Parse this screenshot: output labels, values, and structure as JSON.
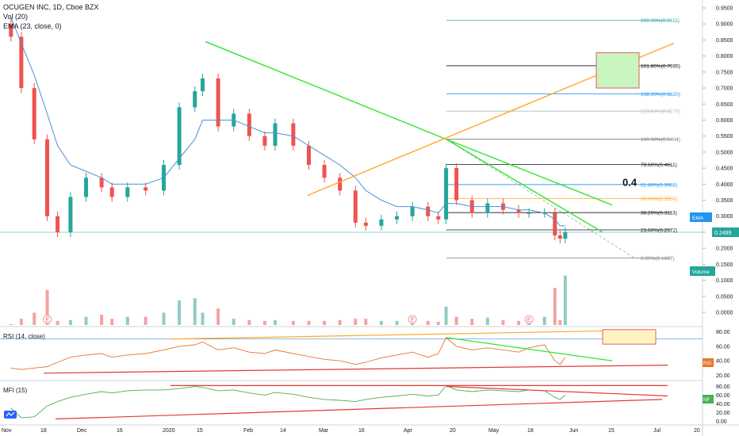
{
  "header": {
    "symbol_line": "OCUGEN INC, 1D, Cboe BZX",
    "vol_line": "Vol (20)",
    "ema_line": "EMA (23, close, 0)"
  },
  "panels": {
    "rsi_label": "RSI (14, close)",
    "mfi_label": "MFI (15)"
  },
  "axis": {
    "price_ticks": [
      "0.9500",
      "0.9000",
      "0.8500",
      "0.8000",
      "0.7500",
      "0.7000",
      "0.6500",
      "0.6000",
      "0.5500",
      "0.5000",
      "0.4500",
      "0.4000",
      "0.3500",
      "0.3000",
      "0.2500",
      "0.2000",
      "0.1500",
      "0.1000",
      "0.0500",
      "0.0000"
    ],
    "rsi_ticks": [
      "80.00",
      "60.00",
      "40.00",
      "20.00"
    ],
    "mfi_ticks": [
      "80.00",
      "60.00",
      "40.00",
      "20.00",
      "0.00"
    ],
    "date_labels": [
      "Nov",
      "18",
      "Dec",
      "16",
      "2020",
      "15",
      "Feb",
      "14",
      "Mar",
      "16",
      "Apr",
      "20",
      "May",
      "18",
      "Jun",
      "15",
      "Jul",
      "20"
    ]
  },
  "badges": {
    "ema": "EMA",
    "last_price": "0.2499",
    "volume": "Volume",
    "rsi": "RSI",
    "mfi": "MF"
  },
  "annotation_text": "0.4",
  "earnings_marker": "E",
  "colors": {
    "up": "#26a69a",
    "down": "#ef5350",
    "ema": "#4a90d9",
    "trend_green": "#2ee52e",
    "trend_orange": "#ffa726",
    "rsi_line": "#e6772e",
    "mfi_line": "#4caf50",
    "support_red": "#e53935"
  },
  "chart_data": {
    "type": "candlestick",
    "x": [
      "2019-11-04",
      "2019-11-08",
      "2019-11-13",
      "2019-11-18",
      "2019-11-22",
      "2019-11-27",
      "2019-12-03",
      "2019-12-09",
      "2019-12-13",
      "2019-12-19",
      "2019-12-26",
      "2020-01-02",
      "2020-01-08",
      "2020-01-14",
      "2020-01-17",
      "2020-01-23",
      "2020-01-29",
      "2020-02-04",
      "2020-02-10",
      "2020-02-14",
      "2020-02-21",
      "2020-02-27",
      "2020-03-04",
      "2020-03-10",
      "2020-03-16",
      "2020-03-20",
      "2020-03-26",
      "2020-04-01",
      "2020-04-07",
      "2020-04-13",
      "2020-04-17",
      "2020-04-20",
      "2020-04-24",
      "2020-04-30",
      "2020-05-06",
      "2020-05-12",
      "2020-05-18",
      "2020-05-22",
      "2020-05-28",
      "2020-06-01",
      "2020-06-03",
      "2020-06-05"
    ],
    "close": [
      0.86,
      0.7,
      0.54,
      0.3,
      0.25,
      0.36,
      0.42,
      0.39,
      0.36,
      0.39,
      0.38,
      0.46,
      0.64,
      0.69,
      0.73,
      0.58,
      0.62,
      0.55,
      0.52,
      0.59,
      0.52,
      0.46,
      0.42,
      0.38,
      0.28,
      0.27,
      0.29,
      0.3,
      0.33,
      0.3,
      0.29,
      0.45,
      0.35,
      0.31,
      0.34,
      0.32,
      0.31,
      0.31,
      0.31,
      0.24,
      0.23,
      0.25
    ],
    "ema_values": [
      0.92,
      0.84,
      0.74,
      0.62,
      0.52,
      0.46,
      0.44,
      0.42,
      0.4,
      0.4,
      0.4,
      0.42,
      0.48,
      0.54,
      0.6,
      0.6,
      0.6,
      0.58,
      0.56,
      0.56,
      0.55,
      0.52,
      0.49,
      0.46,
      0.42,
      0.38,
      0.35,
      0.33,
      0.33,
      0.32,
      0.31,
      0.34,
      0.34,
      0.33,
      0.33,
      0.33,
      0.32,
      0.32,
      0.31,
      0.29,
      0.27,
      0.27
    ],
    "volume_values": [
      0.002,
      0.015,
      0.03,
      0.085,
      0.01,
      0.012,
      0.02,
      0.025,
      0.015,
      0.02,
      0.02,
      0.03,
      0.06,
      0.065,
      0.03,
      0.04,
      0.015,
      0.012,
      0.01,
      0.012,
      0.01,
      0.01,
      0.01,
      0.012,
      0.015,
      0.015,
      0.01,
      0.01,
      0.015,
      0.01,
      0.008,
      0.045,
      0.02,
      0.015,
      0.018,
      0.012,
      0.01,
      0.015,
      0.02,
      0.09,
      0.012,
      0.12
    ],
    "fibonacci": [
      {
        "label": "200.00%(0.9111)",
        "value": 0.9111
      },
      {
        "label": "161.80%(0.7695)",
        "value": 0.7695
      },
      {
        "label": "138.20%(0.6820)",
        "value": 0.682
      },
      {
        "label": "123.60%(0.6279)",
        "value": 0.6279
      },
      {
        "label": "100.00%(0.5404)",
        "value": 0.5404
      },
      {
        "label": "78.60%(0.4611)",
        "value": 0.4611
      },
      {
        "label": "61.80%(0.3988)",
        "value": 0.3988
      },
      {
        "label": "50.00%(0.3550)",
        "value": 0.355
      },
      {
        "label": "38.20%(0.3113)",
        "value": 0.3113
      },
      {
        "label": "23.60%(0.2572)",
        "value": 0.2572
      },
      {
        "label": "0.00%(0.1697)",
        "value": 0.1697
      }
    ],
    "last_price": 0.2499,
    "ylim": [
      0.0,
      0.95
    ],
    "rsi_values": [
      30,
      28,
      30,
      32,
      38,
      45,
      48,
      50,
      45,
      48,
      50,
      55,
      60,
      62,
      66,
      55,
      58,
      52,
      50,
      55,
      50,
      46,
      42,
      40,
      35,
      38,
      44,
      48,
      52,
      45,
      50,
      72,
      60,
      55,
      58,
      55,
      52,
      58,
      62,
      40,
      35,
      45
    ],
    "mfi_values": [
      30,
      8,
      10,
      35,
      45,
      55,
      62,
      68,
      65,
      70,
      72,
      72,
      75,
      80,
      78,
      70,
      72,
      65,
      60,
      66,
      62,
      55,
      50,
      48,
      45,
      50,
      55,
      58,
      62,
      58,
      60,
      82,
      72,
      68,
      72,
      70,
      68,
      72,
      70,
      55,
      50,
      60
    ],
    "rsi_ylim": [
      15,
      85
    ],
    "mfi_ylim": [
      -5,
      90
    ]
  }
}
